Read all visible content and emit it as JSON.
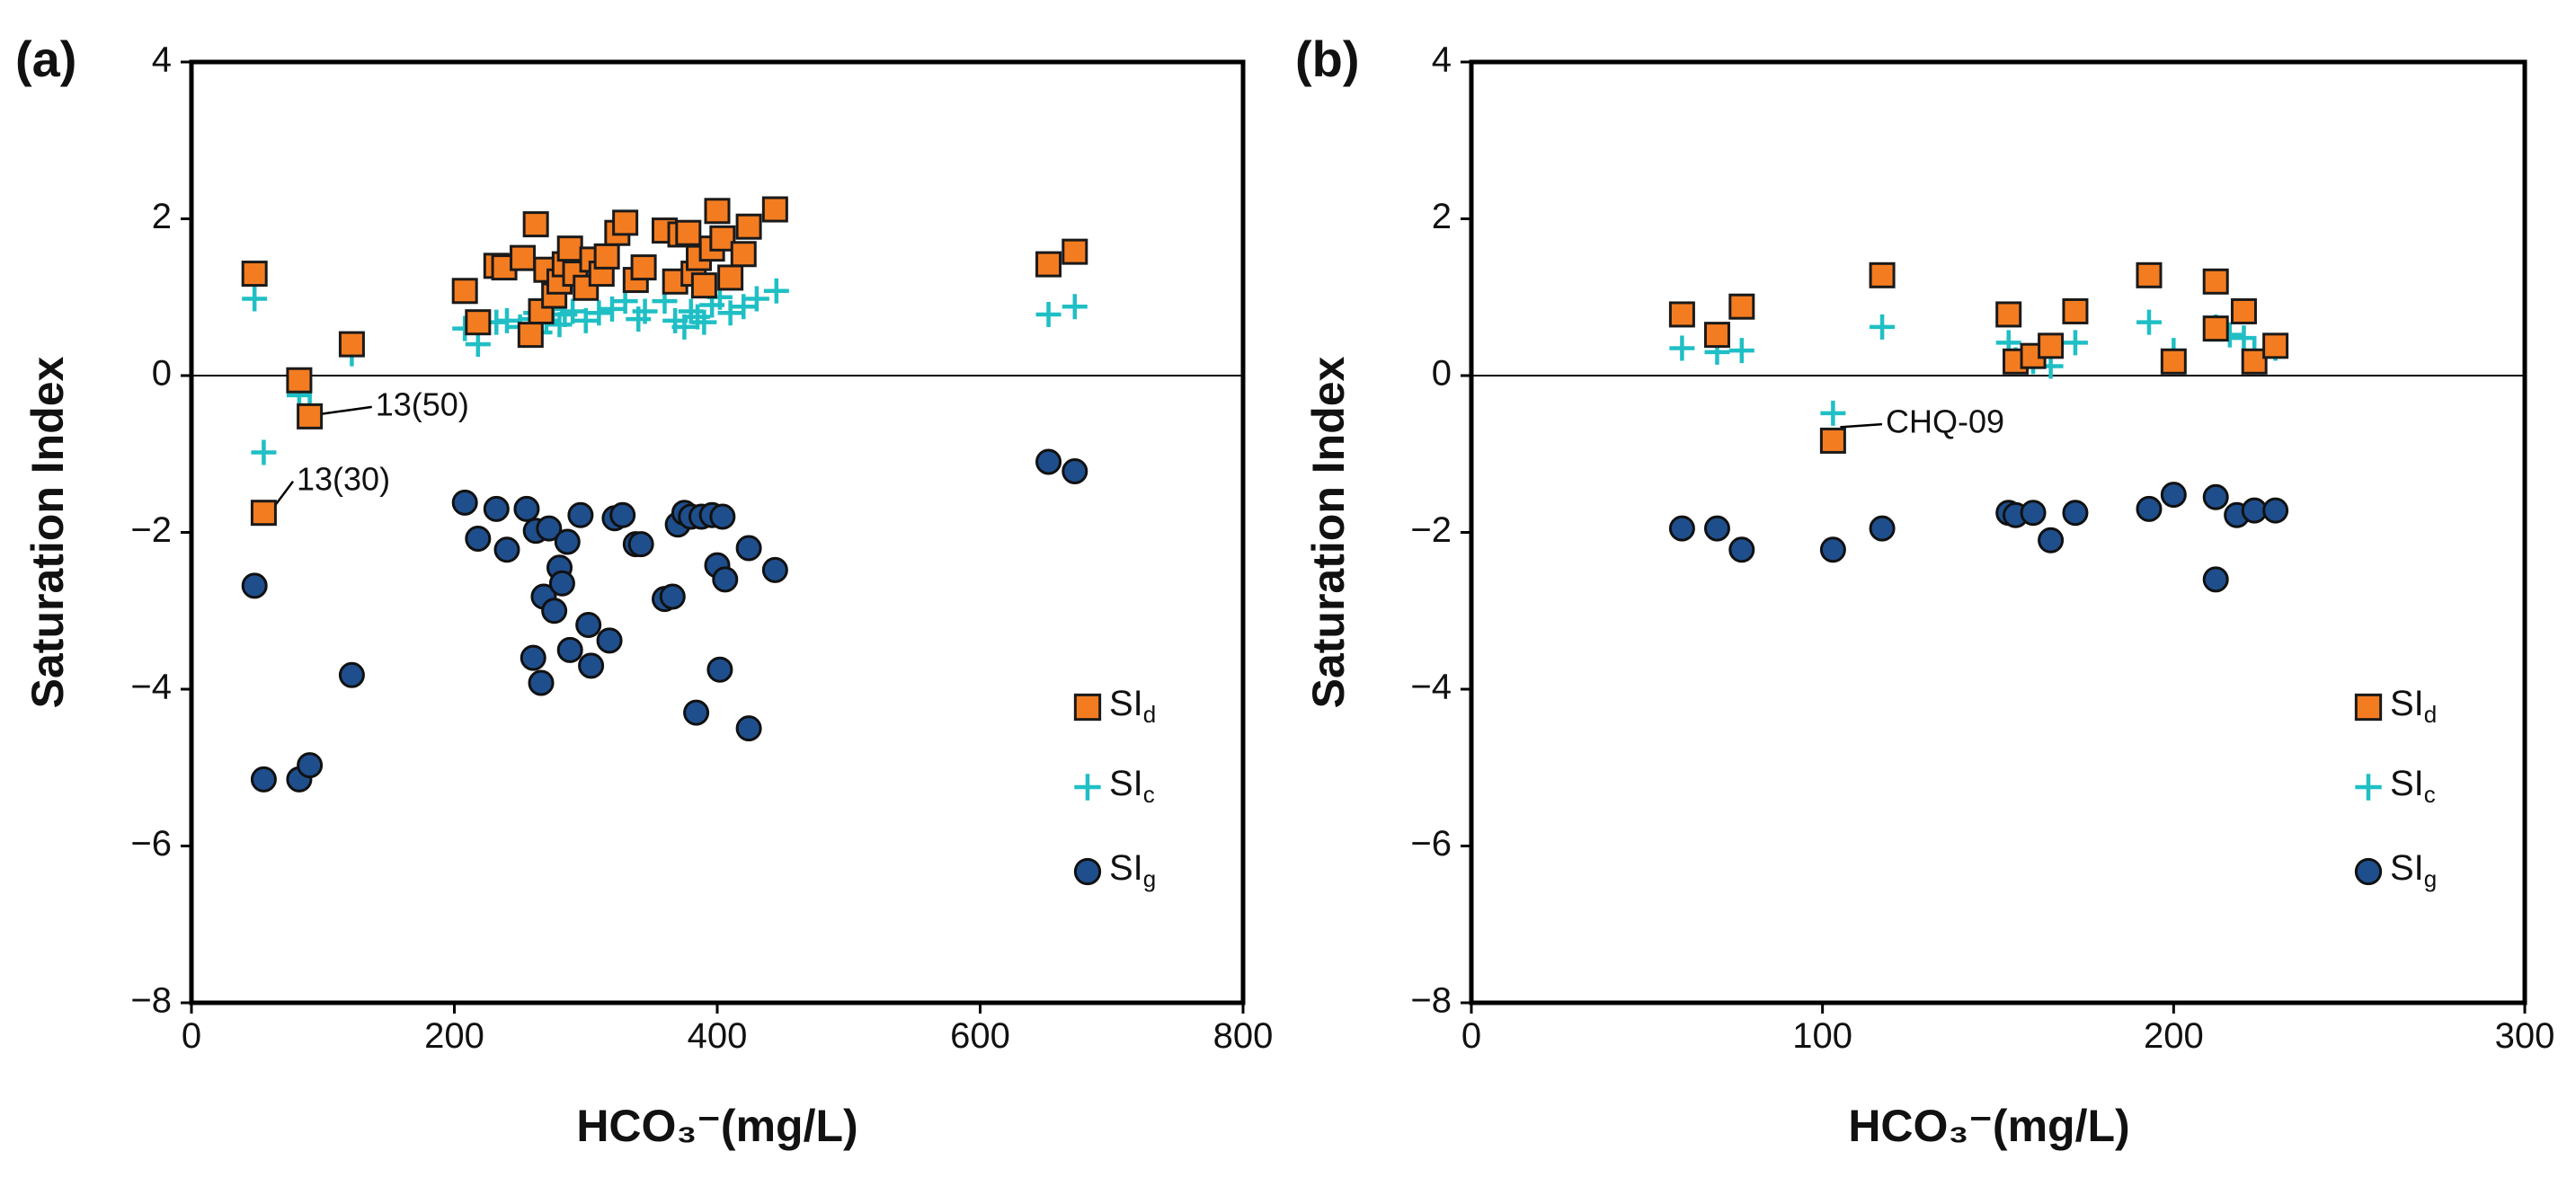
{
  "chart_data": [
    {
      "type": "scatter",
      "panel_label": "(a)",
      "xlabel": "HCO₃⁻(mg/L)",
      "ylabel": "Saturation Index",
      "xlim": [
        0,
        800
      ],
      "ylim": [
        -8,
        4
      ],
      "x_ticks": [
        0,
        200,
        400,
        600,
        800
      ],
      "y_ticks": [
        4,
        2,
        0,
        -2,
        -4,
        -6,
        -8
      ],
      "x_tick_labels": [
        "0",
        "200",
        "400",
        "600",
        "800"
      ],
      "y_tick_labels": [
        "4",
        "2",
        "0",
        "−2",
        "−4",
        "−6",
        "−8"
      ],
      "zero_line": true,
      "legend_position": "bottom-right",
      "legend": [
        {
          "base": "SI",
          "sub": "d",
          "marker": "square"
        },
        {
          "base": "SI",
          "sub": "c",
          "marker": "plus"
        },
        {
          "base": "SI",
          "sub": "g",
          "marker": "circle"
        }
      ],
      "series": [
        {
          "name": "SId",
          "marker": "square",
          "color": "#F47C20",
          "points": [
            [
              48,
              1.3
            ],
            [
              55,
              -1.75
            ],
            [
              82,
              -0.06
            ],
            [
              90,
              -0.52
            ],
            [
              122,
              0.4
            ],
            [
              208,
              1.08
            ],
            [
              218,
              0.68
            ],
            [
              232,
              1.4
            ],
            [
              238,
              1.38
            ],
            [
              252,
              1.5
            ],
            [
              258,
              0.52
            ],
            [
              262,
              1.93
            ],
            [
              266,
              0.82
            ],
            [
              270,
              1.35
            ],
            [
              276,
              1.02
            ],
            [
              280,
              1.2
            ],
            [
              284,
              1.42
            ],
            [
              288,
              1.62
            ],
            [
              292,
              1.3
            ],
            [
              300,
              1.12
            ],
            [
              305,
              1.48
            ],
            [
              312,
              1.3
            ],
            [
              316,
              1.52
            ],
            [
              324,
              1.82
            ],
            [
              330,
              1.95
            ],
            [
              338,
              1.22
            ],
            [
              344,
              1.38
            ],
            [
              360,
              1.85
            ],
            [
              368,
              1.2
            ],
            [
              372,
              1.8
            ],
            [
              378,
              1.82
            ],
            [
              382,
              1.3
            ],
            [
              386,
              1.5
            ],
            [
              390,
              1.15
            ],
            [
              396,
              1.62
            ],
            [
              400,
              2.1
            ],
            [
              404,
              1.75
            ],
            [
              410,
              1.25
            ],
            [
              420,
              1.55
            ],
            [
              424,
              1.9
            ],
            [
              444,
              2.12
            ],
            [
              652,
              1.42
            ],
            [
              672,
              1.58
            ]
          ]
        },
        {
          "name": "SIc",
          "marker": "plus",
          "color": "#1FBFC5",
          "points": [
            [
              48,
              0.98
            ],
            [
              55,
              -0.98
            ],
            [
              82,
              -0.25
            ],
            [
              90,
              -0.38
            ],
            [
              122,
              0.28
            ],
            [
              208,
              0.6
            ],
            [
              218,
              0.4
            ],
            [
              232,
              0.68
            ],
            [
              240,
              0.7
            ],
            [
              250,
              0.62
            ],
            [
              258,
              0.72
            ],
            [
              262,
              0.8
            ],
            [
              265,
              0.55
            ],
            [
              270,
              0.7
            ],
            [
              275,
              0.85
            ],
            [
              280,
              0.65
            ],
            [
              284,
              0.78
            ],
            [
              290,
              0.82
            ],
            [
              300,
              0.7
            ],
            [
              310,
              0.8
            ],
            [
              320,
              0.85
            ],
            [
              330,
              0.95
            ],
            [
              340,
              0.72
            ],
            [
              345,
              0.82
            ],
            [
              360,
              0.95
            ],
            [
              368,
              0.7
            ],
            [
              375,
              0.62
            ],
            [
              380,
              0.82
            ],
            [
              385,
              0.75
            ],
            [
              390,
              0.68
            ],
            [
              396,
              0.9
            ],
            [
              402,
              1.0
            ],
            [
              410,
              0.8
            ],
            [
              420,
              0.88
            ],
            [
              430,
              0.98
            ],
            [
              445,
              1.08
            ],
            [
              652,
              0.78
            ],
            [
              672,
              0.88
            ]
          ]
        },
        {
          "name": "SIg",
          "marker": "circle",
          "color": "#1F4E8C",
          "points": [
            [
              48,
              -2.68
            ],
            [
              55,
              -5.15
            ],
            [
              82,
              -5.15
            ],
            [
              90,
              -4.97
            ],
            [
              122,
              -3.82
            ],
            [
              208,
              -1.62
            ],
            [
              218,
              -2.08
            ],
            [
              232,
              -1.7
            ],
            [
              240,
              -2.22
            ],
            [
              255,
              -1.7
            ],
            [
              260,
              -3.6
            ],
            [
              262,
              -1.98
            ],
            [
              266,
              -3.92
            ],
            [
              268,
              -2.82
            ],
            [
              272,
              -1.95
            ],
            [
              276,
              -3.0
            ],
            [
              280,
              -2.45
            ],
            [
              282,
              -2.65
            ],
            [
              286,
              -2.12
            ],
            [
              288,
              -3.5
            ],
            [
              296,
              -1.78
            ],
            [
              302,
              -3.18
            ],
            [
              304,
              -3.7
            ],
            [
              318,
              -3.38
            ],
            [
              322,
              -1.82
            ],
            [
              328,
              -1.78
            ],
            [
              338,
              -2.15
            ],
            [
              342,
              -2.15
            ],
            [
              360,
              -2.85
            ],
            [
              366,
              -2.82
            ],
            [
              370,
              -1.9
            ],
            [
              375,
              -1.75
            ],
            [
              380,
              -1.8
            ],
            [
              384,
              -4.3
            ],
            [
              388,
              -1.8
            ],
            [
              396,
              -1.78
            ],
            [
              400,
              -2.42
            ],
            [
              402,
              -3.75
            ],
            [
              406,
              -2.6
            ],
            [
              404,
              -1.8
            ],
            [
              424,
              -2.2
            ],
            [
              424,
              -4.5
            ],
            [
              444,
              -2.48
            ],
            [
              652,
              -1.1
            ],
            [
              672,
              -1.22
            ]
          ]
        }
      ],
      "annotations": [
        {
          "text": "13(50)",
          "x": 90,
          "y": -0.52,
          "label_x": 140,
          "label_y": -0.4
        },
        {
          "text": "13(30)",
          "x": 55,
          "y": -1.75,
          "label_x": 80,
          "label_y": -1.35
        }
      ]
    },
    {
      "type": "scatter",
      "panel_label": "(b)",
      "xlabel": "HCO₃⁻(mg/L)",
      "ylabel": "Saturation Index",
      "xlim": [
        0,
        300
      ],
      "ylim": [
        -8,
        4
      ],
      "x_ticks": [
        0,
        100,
        200,
        300
      ],
      "y_ticks": [
        4,
        2,
        0,
        -2,
        -4,
        -6,
        -8
      ],
      "x_tick_labels": [
        "0",
        "100",
        "200",
        "300"
      ],
      "y_tick_labels": [
        "4",
        "2",
        "0",
        "−2",
        "−4",
        "−6",
        "−8"
      ],
      "zero_line": true,
      "legend_position": "bottom-right",
      "legend": [
        {
          "base": "SI",
          "sub": "d",
          "marker": "square"
        },
        {
          "base": "SI",
          "sub": "c",
          "marker": "plus"
        },
        {
          "base": "SI",
          "sub": "g",
          "marker": "circle"
        }
      ],
      "series": [
        {
          "name": "SId",
          "marker": "square",
          "color": "#F47C20",
          "points": [
            [
              60,
              0.78
            ],
            [
              70,
              0.52
            ],
            [
              77,
              0.88
            ],
            [
              103,
              -0.83
            ],
            [
              117,
              1.28
            ],
            [
              153,
              0.78
            ],
            [
              155,
              0.18
            ],
            [
              160,
              0.25
            ],
            [
              165,
              0.38
            ],
            [
              172,
              0.82
            ],
            [
              193,
              1.28
            ],
            [
              200,
              0.18
            ],
            [
              212,
              1.2
            ],
            [
              212,
              0.6
            ],
            [
              220,
              0.82
            ],
            [
              223,
              0.18
            ],
            [
              229,
              0.38
            ]
          ]
        },
        {
          "name": "SIc",
          "marker": "plus",
          "color": "#1FBFC5",
          "points": [
            [
              60,
              0.35
            ],
            [
              70,
              0.3
            ],
            [
              77,
              0.32
            ],
            [
              103,
              -0.48
            ],
            [
              117,
              0.62
            ],
            [
              153,
              0.42
            ],
            [
              155,
              0.2
            ],
            [
              160,
              0.18
            ],
            [
              165,
              0.12
            ],
            [
              172,
              0.42
            ],
            [
              193,
              0.68
            ],
            [
              200,
              0.32
            ],
            [
              212,
              0.62
            ],
            [
              216,
              0.52
            ],
            [
              220,
              0.48
            ],
            [
              223,
              0.3
            ],
            [
              229,
              0.35
            ]
          ]
        },
        {
          "name": "SIg",
          "marker": "circle",
          "color": "#1F4E8C",
          "points": [
            [
              60,
              -1.95
            ],
            [
              70,
              -1.95
            ],
            [
              77,
              -2.22
            ],
            [
              103,
              -2.22
            ],
            [
              117,
              -1.95
            ],
            [
              153,
              -1.75
            ],
            [
              155,
              -1.78
            ],
            [
              160,
              -1.75
            ],
            [
              165,
              -2.1
            ],
            [
              172,
              -1.75
            ],
            [
              193,
              -1.7
            ],
            [
              200,
              -1.52
            ],
            [
              212,
              -1.55
            ],
            [
              212,
              -2.6
            ],
            [
              218,
              -1.78
            ],
            [
              223,
              -1.72
            ],
            [
              229,
              -1.72
            ]
          ]
        }
      ],
      "annotations": [
        {
          "text": "CHQ-09",
          "x": 103,
          "y": -0.68,
          "label_x": 118,
          "label_y": -0.62
        }
      ]
    }
  ]
}
